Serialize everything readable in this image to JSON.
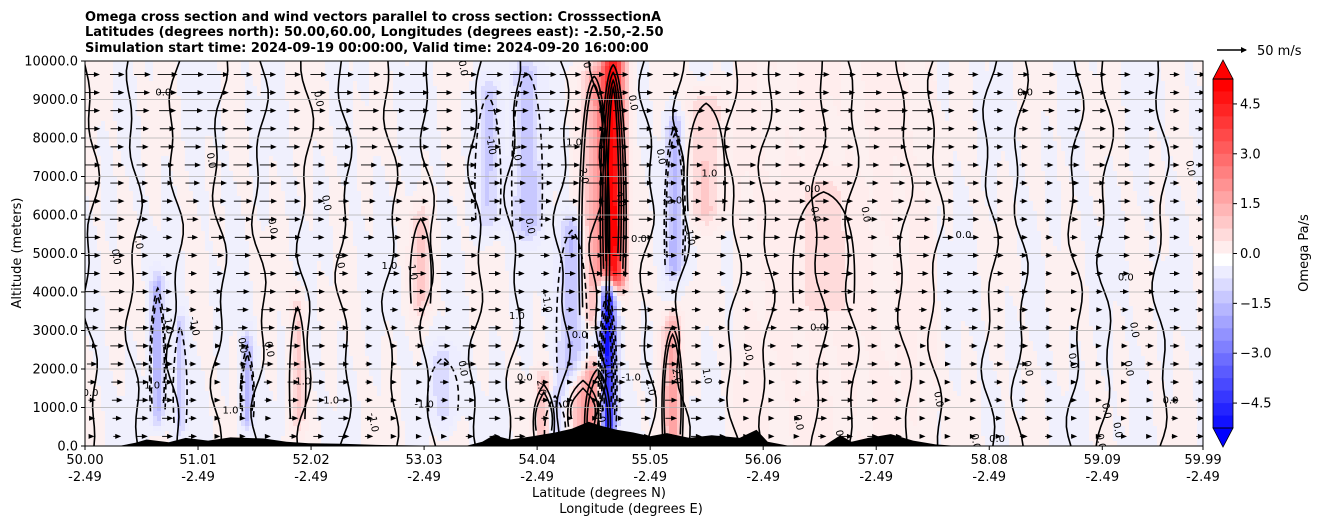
{
  "chart_data": {
    "type": "contour cross-section with wind vectors",
    "title_lines": [
      "Omega cross section and wind vectors parallel to cross section: CrosssectionA",
      "Latitudes (degrees north): 50.00,60.00, Longitudes (degrees east): -2.50,-2.50",
      "Simulation start time: 2024-09-19 00:00:00, Valid time: 2024-09-20 16:00:00"
    ],
    "ylabel": "Altitude (meters)",
    "xlabel_lines": [
      "Latitude (degrees N)",
      "Longitude (degrees E)"
    ],
    "ylim": [
      0,
      10000
    ],
    "xlim": [
      50.0,
      59.99
    ],
    "y_ticks": [
      0,
      1000,
      2000,
      3000,
      4000,
      5000,
      6000,
      7000,
      8000,
      9000,
      10000
    ],
    "y_tick_labels": [
      "0.0",
      "1000.0",
      "2000.0",
      "3000.0",
      "4000.0",
      "5000.0",
      "6000.0",
      "7000.0",
      "8000.0",
      "9000.0",
      "10000.0"
    ],
    "x_ticks": [
      {
        "lat": 50.0,
        "lat_label": "50.00",
        "lon_label": "-2.49"
      },
      {
        "lat": 51.01,
        "lat_label": "51.01",
        "lon_label": "-2.49"
      },
      {
        "lat": 52.02,
        "lat_label": "52.02",
        "lon_label": "-2.49"
      },
      {
        "lat": 53.03,
        "lat_label": "53.03",
        "lon_label": "-2.49"
      },
      {
        "lat": 54.04,
        "lat_label": "54.04",
        "lon_label": "-2.49"
      },
      {
        "lat": 55.05,
        "lat_label": "55.05",
        "lon_label": "-2.49"
      },
      {
        "lat": 56.06,
        "lat_label": "56.06",
        "lon_label": "-2.49"
      },
      {
        "lat": 57.07,
        "lat_label": "57.07",
        "lon_label": "-2.49"
      },
      {
        "lat": 58.08,
        "lat_label": "58.08",
        "lon_label": "-2.49"
      },
      {
        "lat": 59.09,
        "lat_label": "59.09",
        "lon_label": "-2.49"
      },
      {
        "lat": 59.99,
        "lat_label": "59.99",
        "lon_label": "-2.49"
      }
    ],
    "colorbar": {
      "label": "Omega Pa/s",
      "range": [
        -5.25,
        5.25
      ],
      "step": 0.375,
      "tick_values": [
        -4.5,
        -3.0,
        -1.5,
        0.0,
        1.5,
        3.0,
        4.5
      ],
      "tick_labels": [
        "−4.5",
        "−3.0",
        "−1.5",
        "0.0",
        "1.5",
        "3.0",
        "4.5"
      ],
      "extend": "both",
      "negative_color": "#0000ff",
      "positive_color": "#ff0000",
      "zero_color": "#ffffff"
    },
    "vector_key": {
      "label": "50 m/s",
      "speed": 50
    },
    "omega_features": [
      {
        "lat": 54.72,
        "z_min": 4500,
        "z_max": 9800,
        "omega": 5.0,
        "width": 0.1
      },
      {
        "lat": 54.55,
        "z_min": 3500,
        "z_max": 9500,
        "omega": 1.6,
        "width": 0.12
      },
      {
        "lat": 54.58,
        "z_min": 0,
        "z_max": 1900,
        "omega": 1.8,
        "width": 0.1
      },
      {
        "lat": 54.45,
        "z_min": 600,
        "z_max": 1600,
        "omega": 1.5,
        "width": 0.12
      },
      {
        "lat": 54.67,
        "z_min": 600,
        "z_max": 3900,
        "omega": -5.2,
        "width": 0.07
      },
      {
        "lat": 54.35,
        "z_min": 2000,
        "z_max": 5500,
        "omega": -1.4,
        "width": 0.12
      },
      {
        "lat": 53.95,
        "z_min": 5800,
        "z_max": 9600,
        "omega": -1.3,
        "width": 0.12
      },
      {
        "lat": 53.6,
        "z_min": 6000,
        "z_max": 9000,
        "omega": -1.0,
        "width": 0.1
      },
      {
        "lat": 55.27,
        "z_min": 4800,
        "z_max": 8200,
        "omega": -1.5,
        "width": 0.08
      },
      {
        "lat": 55.25,
        "z_min": 200,
        "z_max": 3000,
        "omega": 1.8,
        "width": 0.08
      },
      {
        "lat": 55.55,
        "z_min": 6200,
        "z_max": 8800,
        "omega": 1.0,
        "width": 0.15
      },
      {
        "lat": 54.1,
        "z_min": 300,
        "z_max": 1500,
        "omega": 1.5,
        "width": 0.08
      },
      {
        "lat": 54.2,
        "z_min": 0,
        "z_max": 1200,
        "omega": -1.2,
        "width": 0.08
      },
      {
        "lat": 50.65,
        "z_min": 1000,
        "z_max": 4000,
        "omega": -1.6,
        "width": 0.06
      },
      {
        "lat": 50.85,
        "z_min": 700,
        "z_max": 3000,
        "omega": -1.2,
        "width": 0.05
      },
      {
        "lat": 51.45,
        "z_min": 800,
        "z_max": 2500,
        "omega": -1.5,
        "width": 0.05
      },
      {
        "lat": 51.9,
        "z_min": 800,
        "z_max": 3500,
        "omega": 1.0,
        "width": 0.06
      },
      {
        "lat": 53.0,
        "z_min": 3800,
        "z_max": 5800,
        "omega": 1.0,
        "width": 0.08
      },
      {
        "lat": 53.2,
        "z_min": 1000,
        "z_max": 2200,
        "omega": -0.8,
        "width": 0.12
      },
      {
        "lat": 56.6,
        "z_min": 3800,
        "z_max": 6500,
        "omega": 0.6,
        "width": 0.25
      }
    ],
    "contour_labels": [
      {
        "text": "0.0",
        "lat": 50.05,
        "z": 1300
      },
      {
        "text": "0.0",
        "lat": 50.25,
        "z": 4900
      },
      {
        "text": "1.0",
        "lat": 50.45,
        "z": 5300
      },
      {
        "text": "0.0",
        "lat": 50.7,
        "z": 9100
      },
      {
        "text": "1.0",
        "lat": 50.72,
        "z": 3100
      },
      {
        "text": "-1.0",
        "lat": 50.95,
        "z": 3100
      },
      {
        "text": "1.0",
        "lat": 50.6,
        "z": 1500
      },
      {
        "text": "0.0",
        "lat": 51.1,
        "z": 7400
      },
      {
        "text": "0.0",
        "lat": 51.38,
        "z": 2600
      },
      {
        "text": "1.0",
        "lat": 51.3,
        "z": 850
      },
      {
        "text": "0.0",
        "lat": 51.65,
        "z": 5700
      },
      {
        "text": "0.0",
        "lat": 51.62,
        "z": 2500
      },
      {
        "text": "1.0",
        "lat": 51.95,
        "z": 1600
      },
      {
        "text": "0.0",
        "lat": 52.06,
        "z": 9000
      },
      {
        "text": "0.0",
        "lat": 52.13,
        "z": 6300
      },
      {
        "text": "1.0",
        "lat": 52.2,
        "z": 1100
      },
      {
        "text": "0.0",
        "lat": 52.25,
        "z": 4800
      },
      {
        "text": "-1.0",
        "lat": 52.55,
        "z": 600
      },
      {
        "text": "1.0",
        "lat": 52.72,
        "z": 4600
      },
      {
        "text": "1.0",
        "lat": 52.9,
        "z": 4500
      },
      {
        "text": "0.0",
        "lat": 53.35,
        "z": 9800
      },
      {
        "text": "-1.0",
        "lat": 53.03,
        "z": 1000
      },
      {
        "text": "-1.0",
        "lat": 53.6,
        "z": 7800
      },
      {
        "text": "0.0",
        "lat": 53.35,
        "z": 2000
      },
      {
        "text": "1.0",
        "lat": 53.86,
        "z": 3300
      },
      {
        "text": "1.0",
        "lat": 53.83,
        "z": 7600
      },
      {
        "text": "0.0",
        "lat": 53.95,
        "z": 5700
      },
      {
        "text": "0.0",
        "lat": 53.93,
        "z": 1700
      },
      {
        "text": "-1.0",
        "lat": 54.1,
        "z": 3700
      },
      {
        "text": "0.0",
        "lat": 54.45,
        "z": 10000
      },
      {
        "text": "1.0",
        "lat": 54.37,
        "z": 7800
      },
      {
        "text": "2.0",
        "lat": 54.43,
        "z": 7000
      },
      {
        "text": "2.0",
        "lat": 54.05,
        "z": 1500
      },
      {
        "text": "1.0",
        "lat": 54.25,
        "z": 1000
      },
      {
        "text": "2.0",
        "lat": 54.58,
        "z": 800
      },
      {
        "text": "-1.0",
        "lat": 54.65,
        "z": 2000
      },
      {
        "text": "-1.0",
        "lat": 54.88,
        "z": 1700
      },
      {
        "text": "4.0",
        "lat": 54.76,
        "z": 6400
      },
      {
        "text": "0.0",
        "lat": 54.87,
        "z": 8900
      },
      {
        "text": "0.0",
        "lat": 54.95,
        "z": 5300
      },
      {
        "text": "1.0",
        "lat": 55.03,
        "z": 1500
      },
      {
        "text": "0.0",
        "lat": 55.12,
        "z": 7500
      },
      {
        "text": "-2.0",
        "lat": 55.25,
        "z": 6300
      },
      {
        "text": "1.0",
        "lat": 55.38,
        "z": 5400
      },
      {
        "text": "2.0",
        "lat": 55.26,
        "z": 1800
      },
      {
        "text": "1.0",
        "lat": 55.58,
        "z": 7000
      },
      {
        "text": "1.0",
        "lat": 55.53,
        "z": 1800
      },
      {
        "text": "0.0",
        "lat": 55.9,
        "z": 2400
      },
      {
        "text": "0.0",
        "lat": 56.5,
        "z": 6600
      },
      {
        "text": "0.0",
        "lat": 56.5,
        "z": 6000
      },
      {
        "text": "0.0",
        "lat": 56.35,
        "z": 600
      },
      {
        "text": "0.0",
        "lat": 56.55,
        "z": 3000
      },
      {
        "text": "0.0",
        "lat": 56.95,
        "z": 6000
      },
      {
        "text": "0.0",
        "lat": 56.72,
        "z": 200
      },
      {
        "text": "0.0",
        "lat": 57.85,
        "z": 5400
      },
      {
        "text": "0.0",
        "lat": 57.6,
        "z": 1200
      },
      {
        "text": "0.0",
        "lat": 57.93,
        "z": 100
      },
      {
        "text": "0.0",
        "lat": 58.4,
        "z": 9100
      },
      {
        "text": "0.0",
        "lat": 58.4,
        "z": 2000
      },
      {
        "text": "0.0",
        "lat": 58.8,
        "z": 2200
      },
      {
        "text": "0.0",
        "lat": 58.15,
        "z": 100
      },
      {
        "text": "0.0",
        "lat": 59.1,
        "z": 900
      },
      {
        "text": "0.0",
        "lat": 59.05,
        "z": 100
      },
      {
        "text": "0.0",
        "lat": 59.3,
        "z": 4300
      },
      {
        "text": "0.0",
        "lat": 59.35,
        "z": 3000
      },
      {
        "text": "0.0",
        "lat": 59.3,
        "z": 2000
      },
      {
        "text": "0.0",
        "lat": 59.7,
        "z": 1100
      },
      {
        "text": "0.0",
        "lat": 59.85,
        "z": 7200
      },
      {
        "text": "0.0",
        "lat": 59.2,
        "z": 400
      },
      {
        "text": "0.0",
        "lat": 54.42,
        "z": 2800
      }
    ],
    "terrain": [
      {
        "lat": 50.0,
        "z": 0
      },
      {
        "lat": 50.3,
        "z": 0
      },
      {
        "lat": 50.45,
        "z": 60
      },
      {
        "lat": 50.55,
        "z": 120
      },
      {
        "lat": 50.75,
        "z": 70
      },
      {
        "lat": 50.9,
        "z": 150
      },
      {
        "lat": 51.1,
        "z": 100
      },
      {
        "lat": 51.3,
        "z": 160
      },
      {
        "lat": 51.6,
        "z": 140
      },
      {
        "lat": 51.8,
        "z": 80
      },
      {
        "lat": 52.0,
        "z": 50
      },
      {
        "lat": 52.3,
        "z": 40
      },
      {
        "lat": 52.6,
        "z": 20
      },
      {
        "lat": 53.0,
        "z": 10
      },
      {
        "lat": 53.4,
        "z": 0
      },
      {
        "lat": 53.55,
        "z": 80
      },
      {
        "lat": 53.65,
        "z": 200
      },
      {
        "lat": 53.8,
        "z": 120
      },
      {
        "lat": 54.0,
        "z": 180
      },
      {
        "lat": 54.2,
        "z": 250
      },
      {
        "lat": 54.35,
        "z": 320
      },
      {
        "lat": 54.5,
        "z": 450
      },
      {
        "lat": 54.6,
        "z": 380
      },
      {
        "lat": 54.75,
        "z": 300
      },
      {
        "lat": 54.9,
        "z": 250
      },
      {
        "lat": 55.05,
        "z": 180
      },
      {
        "lat": 55.2,
        "z": 240
      },
      {
        "lat": 55.4,
        "z": 150
      },
      {
        "lat": 55.6,
        "z": 200
      },
      {
        "lat": 55.85,
        "z": 150
      },
      {
        "lat": 56.0,
        "z": 300
      },
      {
        "lat": 56.1,
        "z": 80
      },
      {
        "lat": 56.3,
        "z": 0
      },
      {
        "lat": 56.6,
        "z": 0
      },
      {
        "lat": 56.75,
        "z": 200
      },
      {
        "lat": 56.85,
        "z": 80
      },
      {
        "lat": 57.0,
        "z": 150
      },
      {
        "lat": 57.2,
        "z": 220
      },
      {
        "lat": 57.4,
        "z": 100
      },
      {
        "lat": 57.6,
        "z": 30
      },
      {
        "lat": 57.8,
        "z": 0
      },
      {
        "lat": 59.99,
        "z": 0
      }
    ]
  }
}
